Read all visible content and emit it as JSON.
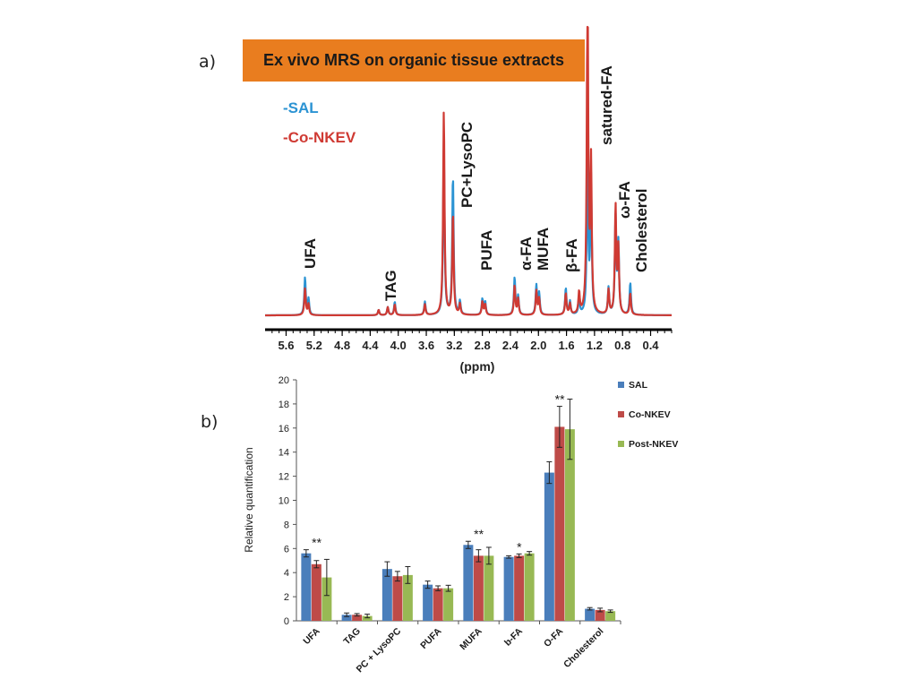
{
  "panel_a_label": "a)",
  "panel_b_label": "b)",
  "banner_title": "Ex vivo MRS on organic tissue extracts",
  "chart_data": [
    {
      "type": "line",
      "subtype": "nmr-spectrum",
      "title": "Ex vivo MRS on organic tissue extracts",
      "xlabel": "(ppm)",
      "xlim": [
        5.9,
        0.1
      ],
      "xticks": [
        5.6,
        5.2,
        4.8,
        4.4,
        4.0,
        3.6,
        3.2,
        2.8,
        2.4,
        2.0,
        1.6,
        1.2,
        0.8,
        0.4
      ],
      "xtick_labels": [
        "5.6",
        "5.2",
        "4.8",
        "4.4",
        "4.0",
        "3.6",
        "3.2",
        "2.8",
        "2.4",
        "2.0",
        "1.6",
        "1.2",
        "0.8",
        "0.4"
      ],
      "legend": [
        {
          "name": "-SAL",
          "color": "#2b93d3"
        },
        {
          "name": "-Co-NKEV",
          "color": "#cf3a33"
        }
      ],
      "series": [
        {
          "name": "SAL",
          "color": "#2b93d3",
          "peaks": [
            {
              "ppm": 5.33,
              "h": 0.14
            },
            {
              "ppm": 5.28,
              "h": 0.06
            },
            {
              "ppm": 4.28,
              "h": 0.02
            },
            {
              "ppm": 4.15,
              "h": 0.03
            },
            {
              "ppm": 4.05,
              "h": 0.05
            },
            {
              "ppm": 3.62,
              "h": 0.05
            },
            {
              "ppm": 3.35,
              "h": 0.62
            },
            {
              "ppm": 3.22,
              "h": 0.52
            },
            {
              "ppm": 3.12,
              "h": 0.05
            },
            {
              "ppm": 2.8,
              "h": 0.06
            },
            {
              "ppm": 2.76,
              "h": 0.05
            },
            {
              "ppm": 2.34,
              "h": 0.14
            },
            {
              "ppm": 2.29,
              "h": 0.07
            },
            {
              "ppm": 2.03,
              "h": 0.11
            },
            {
              "ppm": 1.99,
              "h": 0.08
            },
            {
              "ppm": 1.61,
              "h": 0.1
            },
            {
              "ppm": 1.55,
              "h": 0.05
            },
            {
              "ppm": 1.42,
              "h": 0.06
            },
            {
              "ppm": 1.3,
              "h": 0.58
            },
            {
              "ppm": 1.25,
              "h": 0.5
            },
            {
              "ppm": 1.0,
              "h": 0.1
            },
            {
              "ppm": 0.9,
              "h": 0.36
            },
            {
              "ppm": 0.86,
              "h": 0.26
            },
            {
              "ppm": 0.69,
              "h": 0.12
            }
          ]
        },
        {
          "name": "Co-NKEV",
          "color": "#cf3a33",
          "peaks": [
            {
              "ppm": 5.33,
              "h": 0.1
            },
            {
              "ppm": 5.28,
              "h": 0.04
            },
            {
              "ppm": 4.28,
              "h": 0.02
            },
            {
              "ppm": 4.15,
              "h": 0.03
            },
            {
              "ppm": 4.05,
              "h": 0.04
            },
            {
              "ppm": 3.62,
              "h": 0.04
            },
            {
              "ppm": 3.35,
              "h": 0.76
            },
            {
              "ppm": 3.22,
              "h": 0.38
            },
            {
              "ppm": 3.12,
              "h": 0.04
            },
            {
              "ppm": 2.8,
              "h": 0.05
            },
            {
              "ppm": 2.76,
              "h": 0.04
            },
            {
              "ppm": 2.34,
              "h": 0.11
            },
            {
              "ppm": 2.29,
              "h": 0.06
            },
            {
              "ppm": 2.03,
              "h": 0.09
            },
            {
              "ppm": 1.99,
              "h": 0.06
            },
            {
              "ppm": 1.61,
              "h": 0.08
            },
            {
              "ppm": 1.55,
              "h": 0.04
            },
            {
              "ppm": 1.42,
              "h": 0.08
            },
            {
              "ppm": 1.3,
              "h": 1.25
            },
            {
              "ppm": 1.25,
              "h": 0.55
            },
            {
              "ppm": 1.0,
              "h": 0.09
            },
            {
              "ppm": 0.9,
              "h": 0.4
            },
            {
              "ppm": 0.86,
              "h": 0.24
            },
            {
              "ppm": 0.69,
              "h": 0.08
            }
          ]
        }
      ],
      "annotations": [
        {
          "text": "UFA",
          "ppm": 5.32
        },
        {
          "text": "TAG",
          "ppm": 4.1
        },
        {
          "text": "PC+LysoPC",
          "ppm": 3.12
        },
        {
          "text": "PUFA",
          "ppm": 2.76
        },
        {
          "text": "α-FA",
          "ppm": 2.36
        },
        {
          "text": "MUFA",
          "ppm": 2.12
        },
        {
          "text": "β-FA",
          "ppm": 1.65
        },
        {
          "text": "satured-FA",
          "ppm": 1.1
        },
        {
          "text": "ω-FA",
          "ppm": 0.9
        },
        {
          "text": "Cholesterol",
          "ppm": 0.73
        }
      ]
    },
    {
      "type": "bar",
      "ylabel": "Relative quantification",
      "xlabel": "",
      "ylim": [
        0,
        20
      ],
      "yticks": [
        0,
        2,
        4,
        6,
        8,
        10,
        12,
        14,
        16,
        18,
        20
      ],
      "ytick_labels": [
        "0",
        "2",
        "4",
        "6",
        "8",
        "10",
        "12",
        "14",
        "16",
        "18",
        "20"
      ],
      "categories": [
        "UFA",
        "TAG",
        "PC + LysoPC",
        "PUFA",
        "MUFA",
        "b-FA",
        "O-FA",
        "Cholesterol"
      ],
      "series": [
        {
          "name": "SAL",
          "color": "#4a7ebb",
          "values": [
            5.6,
            0.5,
            4.3,
            3.0,
            6.3,
            5.3,
            12.3,
            1.0
          ],
          "errors": [
            0.3,
            0.15,
            0.6,
            0.3,
            0.3,
            0.1,
            0.9,
            0.1
          ]
        },
        {
          "name": "Co-NKEV",
          "color": "#be4b48",
          "values": [
            4.7,
            0.5,
            3.7,
            2.7,
            5.4,
            5.4,
            16.1,
            0.9
          ],
          "errors": [
            0.3,
            0.1,
            0.4,
            0.2,
            0.5,
            0.15,
            1.7,
            0.15
          ]
        },
        {
          "name": "Post-NKEV",
          "color": "#98b954",
          "values": [
            3.6,
            0.4,
            3.8,
            2.7,
            5.4,
            5.6,
            15.9,
            0.8
          ],
          "errors": [
            1.5,
            0.15,
            0.7,
            0.25,
            0.7,
            0.15,
            2.5,
            0.1
          ]
        }
      ],
      "significance": [
        {
          "category": "UFA",
          "text": "**"
        },
        {
          "category": "MUFA",
          "text": "**"
        },
        {
          "category": "b-FA",
          "text": "*"
        },
        {
          "category": "O-FA",
          "text": "**"
        }
      ],
      "legend": [
        "SAL",
        "Co-NKEV",
        "Post-NKEV"
      ]
    }
  ]
}
